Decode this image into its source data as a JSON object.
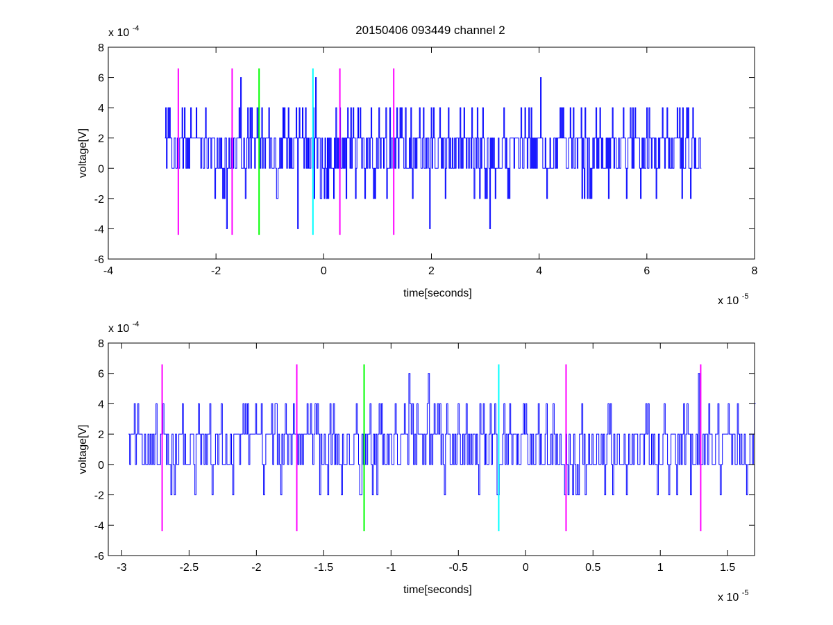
{
  "figure": {
    "title": "20150406 093449 channel 2"
  },
  "chart_data": [
    {
      "type": "line",
      "title": "20150406 093449 channel 2",
      "xlabel": "time[seconds]",
      "ylabel": "voltage[V]",
      "x_exponent_label": "x 10",
      "x_exponent": "-5",
      "y_exponent_label": "x 10",
      "y_exponent": "-4",
      "xlim": [
        -4,
        8
      ],
      "ylim": [
        -6,
        8
      ],
      "xticks": [
        -4,
        -2,
        0,
        2,
        4,
        6,
        8
      ],
      "xtick_labels": [
        "-4",
        "-2",
        "0",
        "2",
        "4",
        "6",
        "8"
      ],
      "yticks": [
        -6,
        -4,
        -2,
        0,
        2,
        4,
        6,
        8
      ],
      "ytick_labels": [
        "-6",
        "-4",
        "-2",
        "0",
        "2",
        "4",
        "6",
        "8"
      ],
      "grid": false,
      "series": [
        {
          "color": "#0000ff",
          "x_range": [
            -2.95,
            7.0
          ],
          "levels": [
            -4,
            -2,
            0,
            2,
            4,
            6
          ],
          "notes": "quantized noise signal sampled densely between -2.95e-5 and 7.0e-5 s; mostly 0 and 2 (x1e-4 V)"
        }
      ],
      "markers": [
        {
          "x": -2.7,
          "y_range": [
            -4.4,
            6.6
          ],
          "color": "#ff00ff"
        },
        {
          "x": -1.7,
          "y_range": [
            -4.4,
            6.6
          ],
          "color": "#ff00ff"
        },
        {
          "x": -1.2,
          "y_range": [
            -4.4,
            6.6
          ],
          "color": "#00ff00"
        },
        {
          "x": -0.2,
          "y_range": [
            -4.4,
            6.6
          ],
          "color": "#00ffff"
        },
        {
          "x": 0.3,
          "y_range": [
            -4.4,
            6.6
          ],
          "color": "#ff00ff"
        },
        {
          "x": 1.3,
          "y_range": [
            -4.4,
            6.6
          ],
          "color": "#ff00ff"
        }
      ]
    },
    {
      "type": "line",
      "title": "",
      "xlabel": "time[seconds]",
      "ylabel": "voltage[V]",
      "x_exponent_label": "x 10",
      "x_exponent": "-5",
      "y_exponent_label": "x 10",
      "y_exponent": "-4",
      "xlim": [
        -3.1,
        1.7
      ],
      "ylim": [
        -6,
        8
      ],
      "xticks": [
        -3,
        -2.5,
        -2,
        -1.5,
        -1,
        -0.5,
        0,
        0.5,
        1,
        1.5
      ],
      "xtick_labels": [
        "-3",
        "-2.5",
        "-2",
        "-1.5",
        "-1",
        "-0.5",
        "0",
        "0.5",
        "1",
        "1.5"
      ],
      "yticks": [
        -6,
        -4,
        -2,
        0,
        2,
        4,
        6,
        8
      ],
      "ytick_labels": [
        "-6",
        "-4",
        "-2",
        "0",
        "2",
        "4",
        "6",
        "8"
      ],
      "grid": false,
      "series": [
        {
          "color": "#0000ff",
          "x_range": [
            -2.95,
            1.7
          ],
          "levels": [
            -2,
            0,
            2,
            4,
            6
          ],
          "notes": "zoomed view of the same quantized noise signal"
        }
      ],
      "markers": [
        {
          "x": -2.7,
          "y_range": [
            -4.4,
            6.6
          ],
          "color": "#ff00ff"
        },
        {
          "x": -1.7,
          "y_range": [
            -4.4,
            6.6
          ],
          "color": "#ff00ff"
        },
        {
          "x": -1.2,
          "y_range": [
            -4.4,
            6.6
          ],
          "color": "#00ff00"
        },
        {
          "x": -0.2,
          "y_range": [
            -4.4,
            6.6
          ],
          "color": "#00ffff"
        },
        {
          "x": 0.3,
          "y_range": [
            -4.4,
            6.6
          ],
          "color": "#ff00ff"
        },
        {
          "x": 1.3,
          "y_range": [
            -4.4,
            6.6
          ],
          "color": "#ff00ff"
        }
      ]
    }
  ]
}
